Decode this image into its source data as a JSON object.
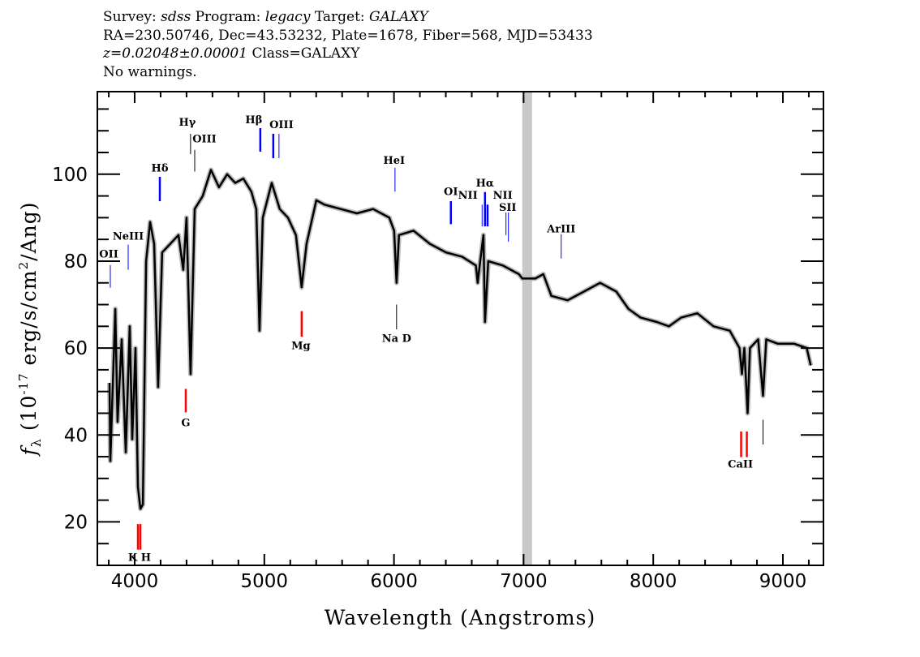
{
  "header": {
    "line1": {
      "k1": "Survey: ",
      "v1": "sdss",
      "k2": " Program: ",
      "v2": "legacy",
      "k3": " Target: ",
      "v3": "GALAXY"
    },
    "line2": "RA=230.50746, Dec=43.53232, Plate=1678, Fiber=568, MJD=53433",
    "line3": {
      "z": "z=0.02048±0.00001",
      "cls": " Class=GALAXY"
    },
    "line4": "No warnings."
  },
  "chart_data": {
    "type": "line",
    "xlabel": "Wavelength (Angstroms)",
    "ylabel": {
      "f": "f",
      "sub": "λ",
      "pre": " (10",
      "exp": "-17",
      "mid": " erg/s/cm",
      "exp2": "2",
      "post": "/Ang)"
    },
    "xlim": [
      3712,
      9313
    ],
    "ylim": [
      10,
      119
    ],
    "xticks": [
      4000,
      5000,
      6000,
      7000,
      8000,
      9000
    ],
    "yticks": [
      20,
      40,
      60,
      80,
      100
    ],
    "grid": false,
    "colors": {
      "spectrum": "#000000",
      "error": "#bbbbbb",
      "masked_band": "#c8c8c8",
      "emission": "#0000ff",
      "absorption": "#ff0000",
      "sky": "#000000"
    },
    "masked_band": [
      6990,
      7065
    ],
    "spectrum": [
      [
        3806,
        52
      ],
      [
        3812,
        34
      ],
      [
        3850,
        69
      ],
      [
        3868,
        43
      ],
      [
        3900,
        62
      ],
      [
        3931,
        36
      ],
      [
        3962,
        65
      ],
      [
        3981,
        39
      ],
      [
        4006,
        60
      ],
      [
        4025,
        28
      ],
      [
        4044,
        23
      ],
      [
        4063,
        24
      ],
      [
        4088,
        80
      ],
      [
        4119,
        89
      ],
      [
        4150,
        84
      ],
      [
        4181,
        51
      ],
      [
        4212,
        82
      ],
      [
        4275,
        84
      ],
      [
        4338,
        86
      ],
      [
        4375,
        78
      ],
      [
        4400,
        90
      ],
      [
        4431,
        54
      ],
      [
        4463,
        92
      ],
      [
        4525,
        95
      ],
      [
        4588,
        101
      ],
      [
        4650,
        97
      ],
      [
        4713,
        100
      ],
      [
        4775,
        98
      ],
      [
        4838,
        99
      ],
      [
        4900,
        96
      ],
      [
        4938,
        92
      ],
      [
        4963,
        64
      ],
      [
        4988,
        90
      ],
      [
        5057,
        98
      ],
      [
        5119,
        92
      ],
      [
        5182,
        90
      ],
      [
        5244,
        86
      ],
      [
        5288,
        74
      ],
      [
        5326,
        84
      ],
      [
        5401,
        94
      ],
      [
        5464,
        93
      ],
      [
        5589,
        92
      ],
      [
        5714,
        91
      ],
      [
        5839,
        92
      ],
      [
        5964,
        90
      ],
      [
        6001,
        87
      ],
      [
        6020,
        75
      ],
      [
        6039,
        86
      ],
      [
        6151,
        87
      ],
      [
        6276,
        84
      ],
      [
        6401,
        82
      ],
      [
        6526,
        81
      ],
      [
        6632,
        79
      ],
      [
        6646,
        75
      ],
      [
        6665,
        80
      ],
      [
        6690,
        86
      ],
      [
        6702,
        66
      ],
      [
        6727,
        80
      ],
      [
        6840,
        79
      ],
      [
        6964,
        77
      ],
      [
        6990,
        76
      ],
      [
        7065,
        76
      ],
      [
        7090,
        76
      ],
      [
        7152,
        77
      ],
      [
        7214,
        72
      ],
      [
        7340,
        71
      ],
      [
        7465,
        73
      ],
      [
        7590,
        75
      ],
      [
        7715,
        73
      ],
      [
        7809,
        69
      ],
      [
        7903,
        67
      ],
      [
        8028,
        66
      ],
      [
        8121,
        65
      ],
      [
        8215,
        67
      ],
      [
        8340,
        68
      ],
      [
        8465,
        65
      ],
      [
        8590,
        64
      ],
      [
        8665,
        60
      ],
      [
        8684,
        54
      ],
      [
        8703,
        60
      ],
      [
        8728,
        45
      ],
      [
        8746,
        60
      ],
      [
        8809,
        62
      ],
      [
        8847,
        49
      ],
      [
        8872,
        62
      ],
      [
        8962,
        61
      ],
      [
        9088,
        61
      ],
      [
        9184,
        60
      ],
      [
        9215,
        56
      ]
    ],
    "line_markers": [
      {
        "wl": 3812,
        "top": 79.1,
        "bottom": 73.9,
        "kind": "emission",
        "bold": false
      },
      {
        "wl": 3950,
        "top": 83.8,
        "bottom": 78.0,
        "kind": "emission",
        "bold": false
      },
      {
        "wl": 4194,
        "top": 99.4,
        "bottom": 93.8,
        "kind": "emission",
        "bold": true
      },
      {
        "wl": 4431,
        "top": 109.3,
        "bottom": 104.6,
        "kind": "sky",
        "bold": false
      },
      {
        "wl": 4463,
        "top": 105.6,
        "bottom": 100.6,
        "kind": "sky",
        "bold": false
      },
      {
        "wl": 4969,
        "top": 110.6,
        "bottom": 105.2,
        "kind": "emission",
        "bold": true
      },
      {
        "wl": 5069,
        "top": 109.3,
        "bottom": 103.7,
        "kind": "emission",
        "bold": true
      },
      {
        "wl": 5113,
        "top": 109.3,
        "bottom": 103.7,
        "kind": "emission",
        "bold": false
      },
      {
        "wl": 6008,
        "top": 101.5,
        "bottom": 96.0,
        "kind": "emission",
        "bold": false
      },
      {
        "wl": 6439,
        "top": 93.8,
        "bottom": 88.5,
        "kind": "emission",
        "bold": true
      },
      {
        "wl": 6680,
        "top": 93.0,
        "bottom": 88.0,
        "kind": "emission",
        "bold": false
      },
      {
        "wl": 6702,
        "top": 95.9,
        "bottom": 88.0,
        "kind": "emission",
        "bold": true
      },
      {
        "wl": 6722,
        "top": 93.0,
        "bottom": 88.0,
        "kind": "emission",
        "bold": true
      },
      {
        "wl": 6864,
        "top": 91.2,
        "bottom": 86.0,
        "kind": "emission",
        "bold": false
      },
      {
        "wl": 6883,
        "top": 91.2,
        "bottom": 84.5,
        "kind": "emission",
        "bold": false
      },
      {
        "wl": 7290,
        "top": 86.2,
        "bottom": 80.6,
        "kind": "emission",
        "bold": false
      },
      {
        "wl": 4025,
        "top": 19.5,
        "bottom": 13.6,
        "kind": "absorption",
        "bold": true
      },
      {
        "wl": 4044,
        "top": 19.5,
        "bottom": 13.6,
        "kind": "absorption",
        "bold": true
      },
      {
        "wl": 4394,
        "top": 50.6,
        "bottom": 45.2,
        "kind": "absorption",
        "bold": true
      },
      {
        "wl": 5288,
        "top": 68.5,
        "bottom": 62.6,
        "kind": "absorption",
        "bold": true
      },
      {
        "wl": 6020,
        "top": 70.0,
        "bottom": 64.3,
        "kind": "sky",
        "bold": false
      },
      {
        "wl": 8678,
        "top": 40.8,
        "bottom": 34.9,
        "kind": "absorption",
        "bold": true
      },
      {
        "wl": 8722,
        "top": 40.8,
        "bottom": 34.9,
        "kind": "absorption",
        "bold": true
      },
      {
        "wl": 8847,
        "top": 43.5,
        "bottom": 37.8,
        "kind": "sky",
        "bold": false
      }
    ],
    "line_labels": [
      {
        "text": "OII",
        "wl": 3800,
        "flux": 80.8
      },
      {
        "text": "NeIII",
        "wl": 3950,
        "flux": 84.9
      },
      {
        "text": "Hδ",
        "wl": 4194,
        "flux": 100.6
      },
      {
        "text": "Hγ",
        "wl": 4406,
        "flux": 111.2
      },
      {
        "text": "OIII",
        "wl": 4538,
        "flux": 107.3
      },
      {
        "text": "Hβ",
        "wl": 4919,
        "flux": 111.7
      },
      {
        "text": "OIII",
        "wl": 5132,
        "flux": 110.6
      },
      {
        "text": "HeI",
        "wl": 6001,
        "flux": 102.4
      },
      {
        "text": "OI",
        "wl": 6439,
        "flux": 95.2
      },
      {
        "text": "NII",
        "wl": 6570,
        "flux": 94.4
      },
      {
        "text": "Hα",
        "wl": 6702,
        "flux": 97.2
      },
      {
        "text": "NII",
        "wl": 6839,
        "flux": 94.4
      },
      {
        "text": "SII",
        "wl": 6877,
        "flux": 91.6
      },
      {
        "text": "ArIII",
        "wl": 7290,
        "flux": 86.6
      },
      {
        "text": "K H",
        "wl": 4037,
        "flux": 11.0
      },
      {
        "text": "G",
        "wl": 4394,
        "flux": 42.0
      },
      {
        "text": "Mg",
        "wl": 5282,
        "flux": 59.7
      },
      {
        "text": "Na D",
        "wl": 6020,
        "flux": 61.4
      },
      {
        "text": "CaII",
        "wl": 8672,
        "flux": 32.5
      }
    ]
  }
}
